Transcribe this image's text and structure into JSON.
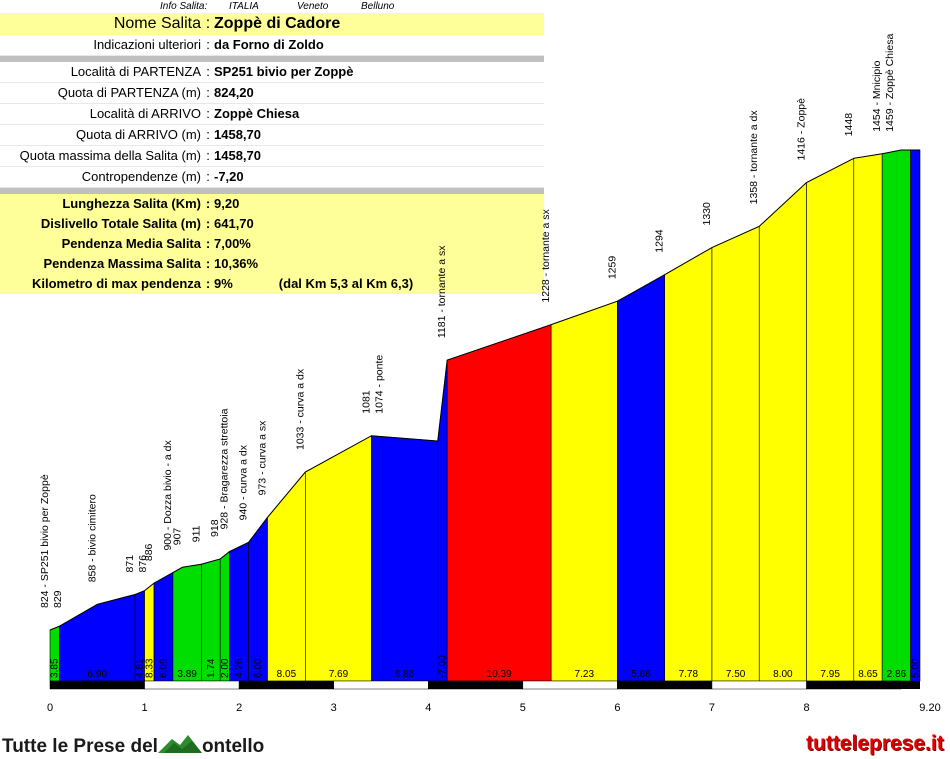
{
  "header": {
    "label": "Info Salita:",
    "country": "ITALIA",
    "region": "Veneto",
    "province": "Belluno"
  },
  "info": {
    "title": {
      "key": "Nome Salita",
      "value": "Zoppè di Cadore"
    },
    "notes": {
      "key": "Indicazioni ulteriori",
      "value": "da Forno di Zoldo"
    },
    "start_loc": {
      "key": "Località di PARTENZA",
      "value": "SP251 bivio per Zoppè"
    },
    "start_alt": {
      "key": "Quota di PARTENZA (m)",
      "value": "824,20"
    },
    "end_loc": {
      "key": "Località di ARRIVO",
      "value": "Zoppè Chiesa"
    },
    "end_alt": {
      "key": "Quota di ARRIVO (m)",
      "value": "1458,70"
    },
    "max_alt": {
      "key": "Quota massima della Salita (m)",
      "value": "1458,70"
    },
    "counter": {
      "key": "Contropendenze (m)",
      "value": "-7,20"
    },
    "length": {
      "key": "Lunghezza Salita (Km)",
      "value": "9,20"
    },
    "gain": {
      "key": "Dislivello Totale Salita (m)",
      "value": "641,70"
    },
    "avg": {
      "key": "Pendenza Media Salita",
      "value": "7,00%"
    },
    "max": {
      "key": "Pendenza Massima Salita",
      "value": "10,36%"
    },
    "maxkm": {
      "key": "Kilometro di max pendenza",
      "value": "9%",
      "extra": "(dal Km 5,3 al Km 6,3)"
    }
  },
  "chart_data": {
    "type": "area",
    "xlim": [
      0,
      9.2
    ],
    "ylim": [
      824,
      1459
    ],
    "profile_x": [
      0,
      0.1,
      0.5,
      0.9,
      1.0,
      1.1,
      1.3,
      1.4,
      1.6,
      1.8,
      1.9,
      2.1,
      2.3,
      2.7,
      3.4,
      4.1,
      4.2,
      5.3,
      6.0,
      6.5,
      7.0,
      7.5,
      8.0,
      8.5,
      8.8,
      9.0,
      9.1,
      9.2
    ],
    "profile_y": [
      824,
      829,
      858,
      871,
      876,
      886,
      900,
      907,
      911,
      918,
      928,
      940,
      973,
      1033,
      1081,
      1074,
      1181,
      1228,
      1259,
      1294,
      1330,
      1358,
      1416,
      1448,
      1454,
      1459,
      1459,
      1459
    ],
    "segments": [
      {
        "from": 0.0,
        "to": 0.1,
        "grade": "3.85",
        "color": "#00dd00"
      },
      {
        "from": 0.1,
        "to": 0.9,
        "grade": "6.90",
        "color": "#0000ff"
      },
      {
        "from": 0.9,
        "to": 1.0,
        "grade": "4.81",
        "color": "#0000ff"
      },
      {
        "from": 1.0,
        "to": 1.1,
        "grade": "8.33",
        "color": "#ffff00"
      },
      {
        "from": 1.1,
        "to": 1.3,
        "grade": "6.09",
        "color": "#0000ff"
      },
      {
        "from": 1.3,
        "to": 1.6,
        "grade": "3.89",
        "color": "#00dd00"
      },
      {
        "from": 1.6,
        "to": 1.8,
        "grade": "1.74",
        "color": "#00dd00"
      },
      {
        "from": 1.8,
        "to": 1.9,
        "grade": "2.00",
        "color": "#00dd00"
      },
      {
        "from": 1.9,
        "to": 2.1,
        "grade": "4.26",
        "color": "#0000ff"
      },
      {
        "from": 2.1,
        "to": 2.3,
        "grade": "6.00",
        "color": "#0000ff"
      },
      {
        "from": 2.3,
        "to": 2.7,
        "grade": "8.05",
        "color": "#ffff00"
      },
      {
        "from": 2.7,
        "to": 3.4,
        "grade": "7.69",
        "color": "#ffff00"
      },
      {
        "from": 3.4,
        "to": 4.1,
        "grade": "6.86",
        "color": "#0000ff"
      },
      {
        "from": 4.1,
        "to": 4.2,
        "grade": "-7.00",
        "color": "#0000ff"
      },
      {
        "from": 4.2,
        "to": 5.3,
        "grade": "10.39",
        "color": "#ff0000"
      },
      {
        "from": 5.3,
        "to": 6.0,
        "grade": "7.23",
        "color": "#ffff00"
      },
      {
        "from": 6.0,
        "to": 6.5,
        "grade": "5.86",
        "color": "#0000ff"
      },
      {
        "from": 6.5,
        "to": 7.0,
        "grade": "7.78",
        "color": "#ffff00"
      },
      {
        "from": 7.0,
        "to": 7.5,
        "grade": "7.50",
        "color": "#ffff00"
      },
      {
        "from": 7.5,
        "to": 8.0,
        "grade": "8.00",
        "color": "#ffff00"
      },
      {
        "from": 8.0,
        "to": 8.5,
        "grade": "7.95",
        "color": "#ffff00"
      },
      {
        "from": 8.5,
        "to": 8.8,
        "grade": "8.65",
        "color": "#ffff00"
      },
      {
        "from": 8.8,
        "to": 9.1,
        "grade": "2.86",
        "color": "#00dd00"
      },
      {
        "from": 9.1,
        "to": 9.2,
        "grade": "5.00",
        "color": "#0000ff"
      }
    ],
    "labels": [
      {
        "x": 0.0,
        "texts": [
          "824 - SP251 bivio per Zoppè",
          "829"
        ]
      },
      {
        "x": 0.5,
        "texts": [
          "858 - bivio cimitero"
        ]
      },
      {
        "x": 0.9,
        "texts": [
          "871",
          "876"
        ]
      },
      {
        "x": 1.1,
        "texts": [
          "886"
        ]
      },
      {
        "x": 1.3,
        "texts": [
          "900 - Dozza bivio - a dx"
        ]
      },
      {
        "x": 1.4,
        "texts": [
          "907"
        ]
      },
      {
        "x": 1.6,
        "texts": [
          "911"
        ]
      },
      {
        "x": 1.8,
        "texts": [
          "918"
        ]
      },
      {
        "x": 1.9,
        "texts": [
          "928 - Bragarezza strettoia"
        ]
      },
      {
        "x": 2.1,
        "texts": [
          "940 - curva a dx"
        ]
      },
      {
        "x": 2.3,
        "texts": [
          "973 - curva a sx"
        ]
      },
      {
        "x": 2.7,
        "texts": [
          "1033 - curva a dx"
        ]
      },
      {
        "x": 3.4,
        "texts": [
          "1081",
          "1074 - ponte"
        ]
      },
      {
        "x": 4.2,
        "texts": [
          "1181 - tornante a sx"
        ]
      },
      {
        "x": 5.3,
        "texts": [
          "1228 - tornante a sx"
        ]
      },
      {
        "x": 6.0,
        "texts": [
          "1259"
        ]
      },
      {
        "x": 6.5,
        "texts": [
          "1294"
        ]
      },
      {
        "x": 7.0,
        "texts": [
          "1330"
        ]
      },
      {
        "x": 7.5,
        "texts": [
          "1358 - tornante a dx"
        ]
      },
      {
        "x": 8.0,
        "texts": [
          "1416 - Zoppè"
        ]
      },
      {
        "x": 8.5,
        "texts": [
          "1448"
        ]
      },
      {
        "x": 8.8,
        "texts": [
          "1454 - Mnicipio",
          "1459 - Zoppè Chiesa"
        ]
      }
    ],
    "x_ticks": [
      "0",
      "1",
      "2",
      "3",
      "4",
      "5",
      "6",
      "7",
      "8",
      "9.20"
    ]
  },
  "footer": {
    "brand_left": "Tutte le Prese del",
    "brand_right": "ontello",
    "site": "tutteleprese.it"
  }
}
